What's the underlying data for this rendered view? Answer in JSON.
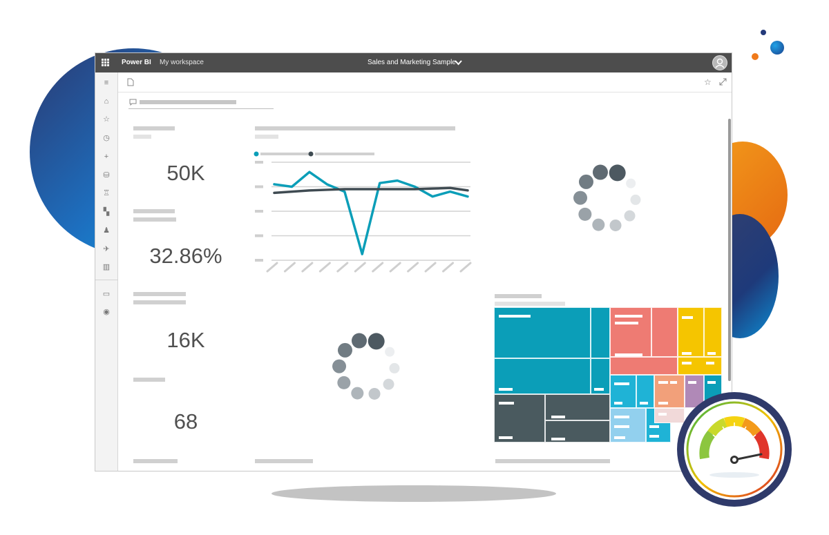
{
  "app": {
    "brand": "Power BI",
    "workspace": "My workspace",
    "report_title": "Sales and Marketing Sample"
  },
  "sidebar": {
    "items": [
      {
        "name": "menu-icon",
        "glyph": "≡"
      },
      {
        "name": "home-icon",
        "glyph": "⌂"
      },
      {
        "name": "favorites-icon",
        "glyph": "☆"
      },
      {
        "name": "recent-icon",
        "glyph": "◷"
      },
      {
        "name": "create-icon",
        "glyph": "+"
      },
      {
        "name": "datasets-icon",
        "glyph": "⛁"
      },
      {
        "name": "goals-icon",
        "glyph": "♖"
      },
      {
        "name": "apps-icon",
        "glyph": "▚"
      },
      {
        "name": "shared-icon",
        "glyph": "♟"
      },
      {
        "name": "deployment-icon",
        "glyph": "✈"
      },
      {
        "name": "learn-icon",
        "glyph": "▥"
      },
      {
        "name": "workspaces-icon",
        "glyph": "▭"
      },
      {
        "name": "my-workspace-icon",
        "glyph": "◉"
      }
    ]
  },
  "kpis": {
    "card1": "50K",
    "card2": "32.86%",
    "card3": "16K",
    "card4": "68"
  },
  "colors": {
    "topbar": "#4d4d4d",
    "teal": "#0b9eb8",
    "dark_line": "#3f4b52",
    "salmon": "#ee7b73",
    "yellow": "#f5c500",
    "slate": "#4a5a5f",
    "light_blue": "#92d0ee",
    "gauge_ring": "#2f3a6a"
  },
  "chart_data": {
    "type": "line",
    "title": "",
    "xlabel": "",
    "ylabel": "",
    "x": [
      1,
      2,
      3,
      4,
      5,
      6,
      7,
      8,
      9,
      10,
      11,
      12
    ],
    "series": [
      {
        "values": [
          72,
          70,
          82,
          72,
          66,
          15,
          73,
          75,
          70,
          62,
          66,
          62
        ]
      },
      {
        "values": [
          65,
          66,
          67,
          67.5,
          68,
          68,
          68,
          68,
          68,
          68.5,
          69,
          67
        ]
      }
    ],
    "ylim": [
      10,
      90
    ],
    "grid": true
  }
}
